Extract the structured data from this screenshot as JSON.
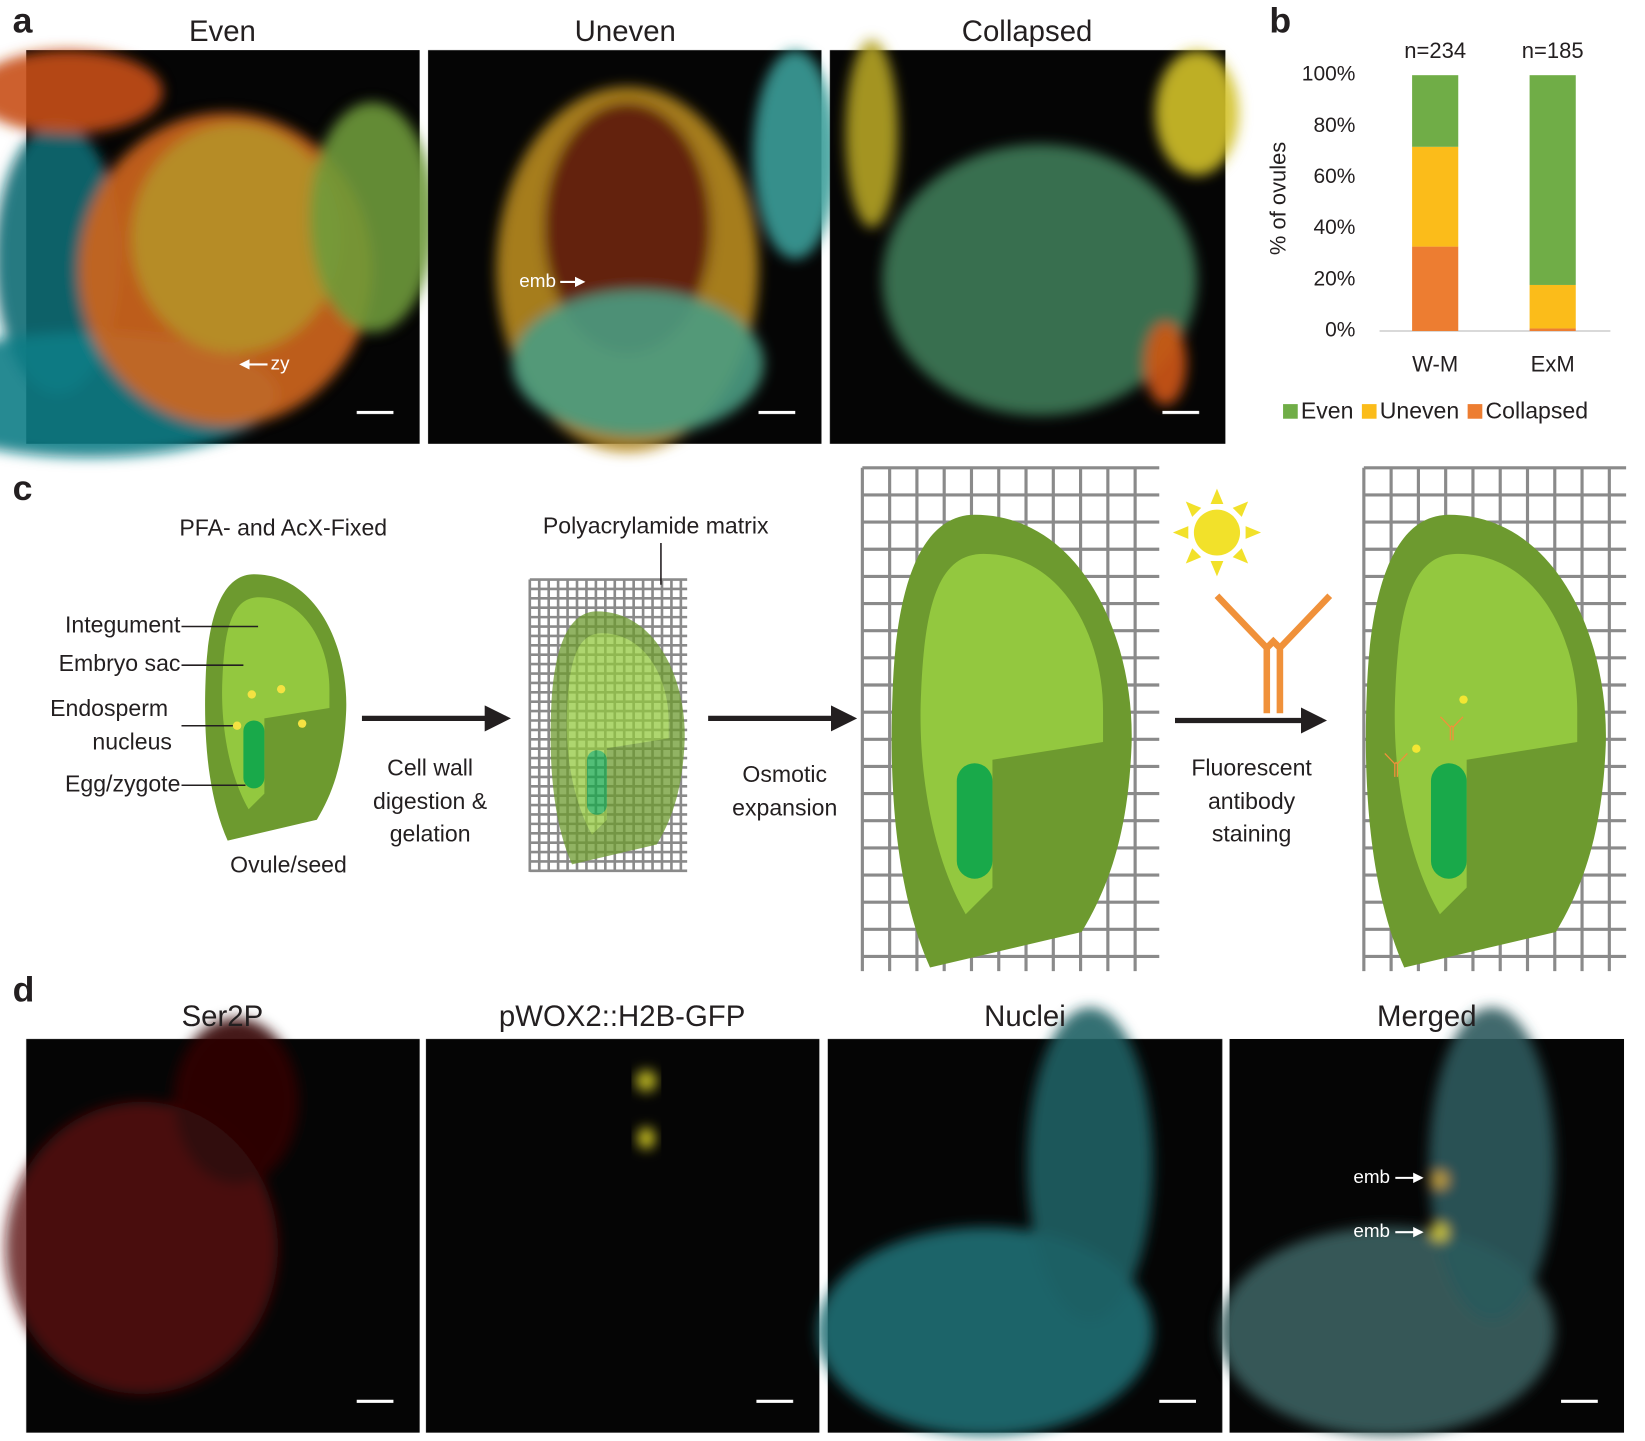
{
  "panel_labels": [
    "a",
    "b",
    "c",
    "d"
  ],
  "panel_a": {
    "titles": [
      "Even",
      "Uneven",
      "Collapsed"
    ],
    "annotations": [
      "zy",
      "emb"
    ]
  },
  "chart_data": {
    "type": "bar",
    "stacked": true,
    "y_label": "% of ovules",
    "categories": [
      "W-M",
      "ExM"
    ],
    "annotations": [
      "n=234",
      "n=185"
    ],
    "series": [
      {
        "name": "Even",
        "color": "#70ad47",
        "values": [
          28,
          82
        ]
      },
      {
        "name": "Uneven",
        "color": "#fbbc1a",
        "values": [
          39,
          17
        ]
      },
      {
        "name": "Collapsed",
        "color": "#ed7d31",
        "values": [
          33,
          1
        ]
      }
    ],
    "ylim": [
      0,
      100
    ],
    "yticks": [
      {
        "value": 0,
        "label": "0%"
      },
      {
        "value": 20,
        "label": "20%"
      },
      {
        "value": 40,
        "label": "40%"
      },
      {
        "value": 60,
        "label": "60%"
      },
      {
        "value": 80,
        "label": "80%"
      },
      {
        "value": 100,
        "label": "100%"
      }
    ],
    "legend": "bottom"
  },
  "panel_c": {
    "title": "PFA- and AcX-Fixed",
    "parts": [
      "Integument",
      "Embryo sac",
      [
        "Endosperm",
        "nucleus"
      ],
      "Egg/zygote"
    ],
    "specimen": "Ovule/seed",
    "matrix": "Polyacrylamide matrix",
    "steps": [
      [
        "Cell wall",
        "digestion &",
        "gelation"
      ],
      [
        "Osmotic",
        "expansion"
      ],
      [
        "Fluorescent",
        "antibody",
        "staining"
      ]
    ]
  },
  "panel_d": {
    "titles": [
      "Ser2P",
      "pWOX2::H2B-GFP",
      "Nuclei",
      "Merged"
    ],
    "annotations": [
      "emb",
      "emb"
    ]
  }
}
